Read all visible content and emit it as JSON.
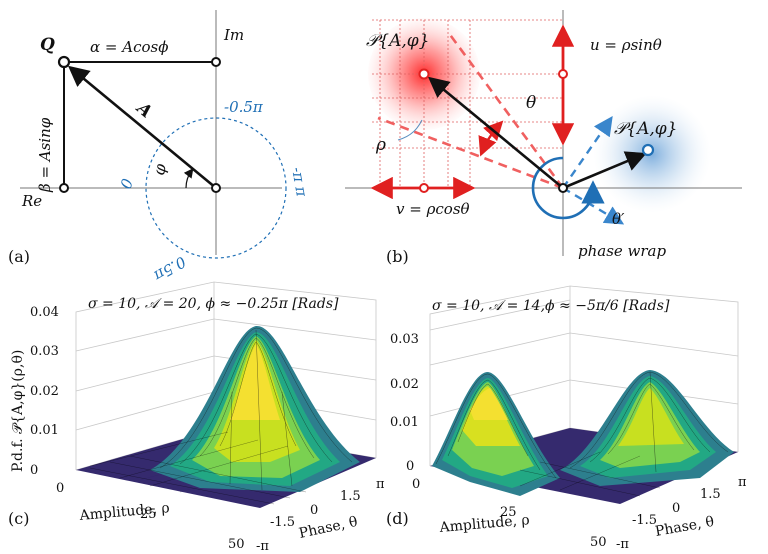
{
  "panel_a": {
    "caption": "(a)",
    "point_label": "Q",
    "alpha_label": "α = Acosϕ",
    "beta_label": "β = Asinφ",
    "vector_label": "A",
    "angle_label": "φ",
    "im_label": "Im",
    "re_label": "Re",
    "circle_label_top": "-0.5π",
    "circle_label_left": "0",
    "circle_label_right": "-π π",
    "circle_label_bottom": "0.5π"
  },
  "panel_b": {
    "caption": "(b)",
    "p_label_red": "𝒫{A,φ}",
    "p_label_blue": "𝒫{A,φ}",
    "u_label": "u = ρsinθ",
    "v_label": "v = ρcosθ",
    "theta_label": "θ",
    "rho_label": "ρ",
    "theta_prime_label": "θ′",
    "phase_wrap_label": "phase wrap"
  },
  "panel_c": {
    "caption": "(c)",
    "title": "σ = 10, 𝒜 = 20, ϕ ≈ −0.25π [Rads]",
    "zlabel": "P.d.f. 𝒫{A,φ}(ρ,θ)",
    "xlabel": "Amplitude, ρ",
    "ylabel": "Phase, θ",
    "z_ticks": [
      "0",
      "0.01",
      "0.02",
      "0.03",
      "0.04"
    ],
    "rho_ticks": [
      "0",
      "25",
      "50"
    ],
    "theta_ticks": [
      "-π",
      "-1.5",
      "0",
      "1.5",
      "π"
    ]
  },
  "panel_d": {
    "caption": "(d)",
    "title": "σ = 10, 𝒜 = 14,ϕ ≈ −5π/6 [Rads]",
    "xlabel": "Amplitude, ρ",
    "ylabel": "Phase, θ",
    "z_ticks": [
      "0",
      "0.01",
      "0.02",
      "0.03"
    ],
    "rho_ticks": [
      "0",
      "25",
      "50"
    ],
    "theta_ticks": [
      "-π",
      "-1.5",
      "0",
      "1.5",
      "π"
    ]
  },
  "colors": {
    "blue": "#1f6fb5",
    "red": "#e02020",
    "black": "#111111"
  }
}
